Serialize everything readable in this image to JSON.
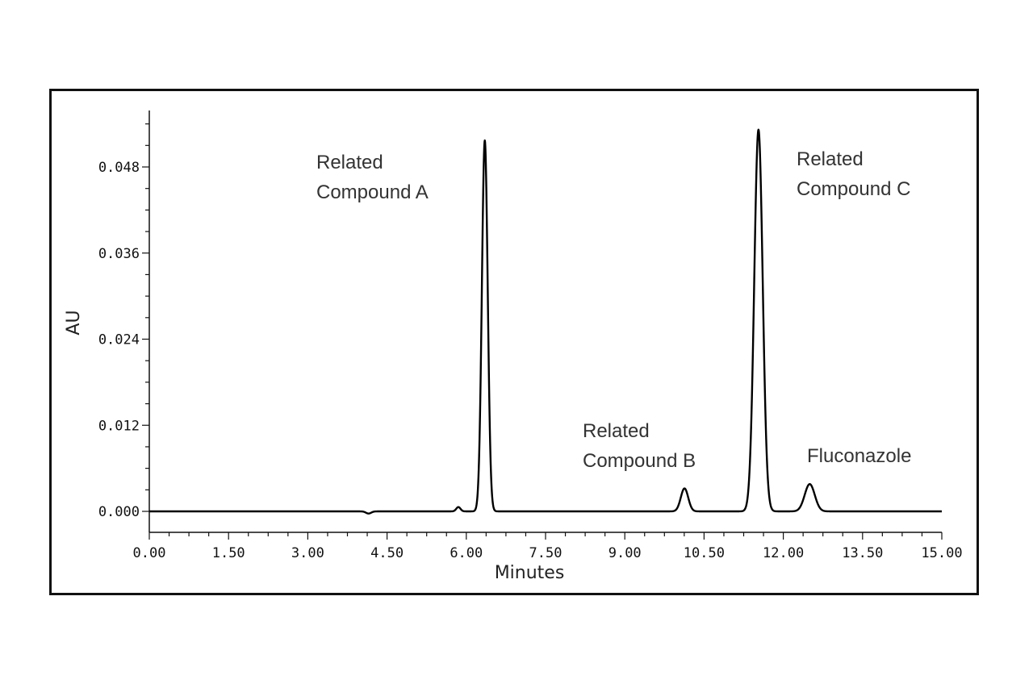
{
  "chart_data": {
    "type": "line",
    "xlabel": "Minutes",
    "ylabel": "AU",
    "xlim": [
      0,
      15
    ],
    "ylim": [
      -0.003,
      0.055
    ],
    "x_ticks": [
      "0.00",
      "1.50",
      "3.00",
      "4.50",
      "6.00",
      "7.50",
      "9.00",
      "10.50",
      "12.00",
      "13.50",
      "15.00"
    ],
    "y_ticks": [
      "0.000",
      "0.012",
      "0.024",
      "0.036",
      "0.048"
    ],
    "grid": false,
    "line_color": "#000000",
    "series": [
      {
        "baseline": 0.0,
        "x_range": [
          0.0,
          15.0
        ],
        "peaks": [
          {
            "x": 4.15,
            "height": -0.0003,
            "width": 0.05
          },
          {
            "x": 5.85,
            "height": 0.0006,
            "width": 0.04
          },
          {
            "x": 6.35,
            "height": 0.0517,
            "width": 0.055
          },
          {
            "x": 10.13,
            "height": 0.0032,
            "width": 0.07
          },
          {
            "x": 11.53,
            "height": 0.0532,
            "width": 0.08
          },
          {
            "x": 12.5,
            "height": 0.0038,
            "width": 0.095
          }
        ]
      }
    ],
    "annotations": [
      {
        "lines": [
          "Related",
          "Compound A"
        ],
        "peak_x": 6.35
      },
      {
        "lines": [
          "Related",
          "Compound B"
        ],
        "peak_x": 10.13
      },
      {
        "lines": [
          "Related",
          "Compound C"
        ],
        "peak_x": 11.53
      },
      {
        "lines": [
          "Fluconazole"
        ],
        "peak_x": 12.5
      }
    ]
  }
}
